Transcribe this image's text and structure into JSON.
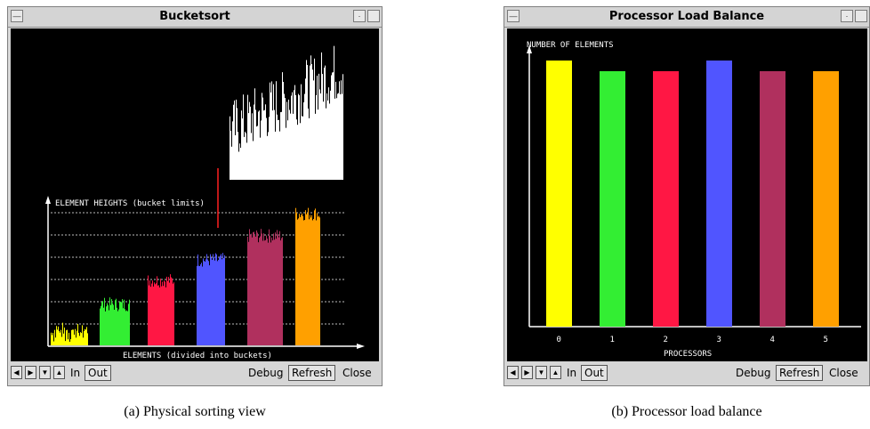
{
  "window_a": {
    "title": "Bucketsort",
    "canvas_labels": {
      "ylabel": "ELEMENT HEIGHTS (bucket limits)",
      "xlabel": "ELEMENTS (divided into buckets)"
    },
    "buttons": {
      "in": "In",
      "out": "Out",
      "debug": "Debug",
      "refresh": "Refresh",
      "close": "Close"
    },
    "caption": "(a) Physical sorting view",
    "bucket_colors": [
      "#ffff00",
      "#33ee33",
      "#ff1744",
      "#5055ff",
      "#b0305e",
      "#ffa000"
    ]
  },
  "window_b": {
    "title": "Processor Load Balance",
    "buttons": {
      "in": "In",
      "out": "Out",
      "debug": "Debug",
      "refresh": "Refresh",
      "close": "Close"
    },
    "caption": "(b) Processor load balance"
  },
  "chart_data": {
    "type": "bar",
    "categories": [
      "0",
      "1",
      "2",
      "3",
      "4",
      "5"
    ],
    "values": [
      100,
      96,
      96,
      100,
      96,
      96
    ],
    "ylabel": "NUMBER OF ELEMENTS",
    "xlabel": "PROCESSORS",
    "colors": [
      "#ffff00",
      "#33ee33",
      "#ff1744",
      "#5055ff",
      "#b0305e",
      "#ffa000"
    ],
    "ylim": [
      0,
      100
    ]
  }
}
